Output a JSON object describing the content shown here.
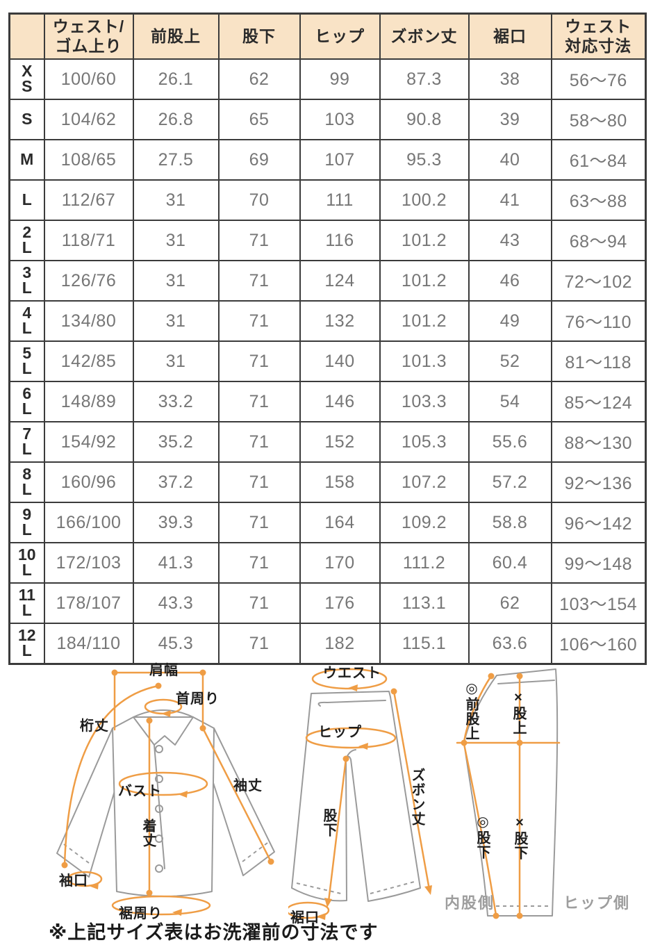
{
  "colors": {
    "accent_orange": "#EF9D45",
    "header_background": "#F9E3C6",
    "table_border": "#3B3B3B",
    "value_text": "#767676",
    "outline_gray": "#9A9A9A"
  },
  "table": {
    "header": [
      {
        "lines": [
          ""
        ]
      },
      {
        "lines": [
          "ウェスト/",
          "ゴム上り"
        ]
      },
      {
        "lines": [
          "前股上"
        ]
      },
      {
        "lines": [
          "股下"
        ]
      },
      {
        "lines": [
          "ヒップ"
        ]
      },
      {
        "lines": [
          "ズボン丈"
        ]
      },
      {
        "lines": [
          "裾口"
        ]
      },
      {
        "lines": [
          "ウェスト",
          "対応寸法"
        ]
      }
    ],
    "rows": [
      {
        "size": [
          "X",
          "S"
        ],
        "values": [
          "100/60",
          "26.1",
          "62",
          "99",
          "87.3",
          "38",
          "56～76"
        ]
      },
      {
        "size": [
          "S"
        ],
        "values": [
          "104/62",
          "26.8",
          "65",
          "103",
          "90.8",
          "39",
          "58～80"
        ]
      },
      {
        "size": [
          "M"
        ],
        "values": [
          "108/65",
          "27.5",
          "69",
          "107",
          "95.3",
          "40",
          "61～84"
        ]
      },
      {
        "size": [
          "L"
        ],
        "values": [
          "112/67",
          "31",
          "70",
          "111",
          "100.2",
          "41",
          "63～88"
        ]
      },
      {
        "size": [
          "2",
          "L"
        ],
        "values": [
          "118/71",
          "31",
          "71",
          "116",
          "101.2",
          "43",
          "68～94"
        ]
      },
      {
        "size": [
          "3",
          "L"
        ],
        "values": [
          "126/76",
          "31",
          "71",
          "124",
          "101.2",
          "46",
          "72～102"
        ]
      },
      {
        "size": [
          "4",
          "L"
        ],
        "values": [
          "134/80",
          "31",
          "71",
          "132",
          "101.2",
          "49",
          "76～110"
        ]
      },
      {
        "size": [
          "5",
          "L"
        ],
        "values": [
          "142/85",
          "31",
          "71",
          "140",
          "101.3",
          "52",
          "81～118"
        ]
      },
      {
        "size": [
          "6",
          "L"
        ],
        "values": [
          "148/89",
          "33.2",
          "71",
          "146",
          "103.3",
          "54",
          "85～124"
        ]
      },
      {
        "size": [
          "7",
          "L"
        ],
        "values": [
          "154/92",
          "35.2",
          "71",
          "152",
          "105.3",
          "55.6",
          "88～130"
        ]
      },
      {
        "size": [
          "8",
          "L"
        ],
        "values": [
          "160/96",
          "37.2",
          "71",
          "158",
          "107.2",
          "57.2",
          "92～136"
        ]
      },
      {
        "size": [
          "9",
          "L"
        ],
        "values": [
          "166/100",
          "39.3",
          "71",
          "164",
          "109.2",
          "58.8",
          "96～142"
        ]
      },
      {
        "size": [
          "10",
          "L"
        ],
        "values": [
          "172/103",
          "41.3",
          "71",
          "170",
          "111.2",
          "60.4",
          "99～148"
        ]
      },
      {
        "size": [
          "11",
          "L"
        ],
        "values": [
          "178/107",
          "43.3",
          "71",
          "176",
          "113.1",
          "62",
          "103～154"
        ]
      },
      {
        "size": [
          "12",
          "L"
        ],
        "values": [
          "184/110",
          "45.3",
          "71",
          "182",
          "115.1",
          "63.6",
          "106～160"
        ]
      }
    ]
  },
  "diagrams": {
    "shirt": {
      "shoulder_width": "肩幅",
      "neck": "首周り",
      "sleeve_from_center": "桁丈",
      "bust": "バスト",
      "sleeve_length": "袖丈",
      "body_length": "着丈",
      "cuff": "袖口",
      "hem_around": "裾周り"
    },
    "pants_front": {
      "waist": "ウエスト",
      "hip": "ヒップ",
      "pants_length": "ズボン丈",
      "inseam": "股下",
      "hem": "裾口"
    },
    "pants_side": {
      "front_rise": "◎前股上",
      "rise": "×股上",
      "inseam_inner": "◎股下",
      "inseam_hip": "×股下",
      "inner_side": "内股側",
      "hip_side": "ヒップ側"
    }
  },
  "note": "※上記サイズ表はお洗濯前の寸法です"
}
